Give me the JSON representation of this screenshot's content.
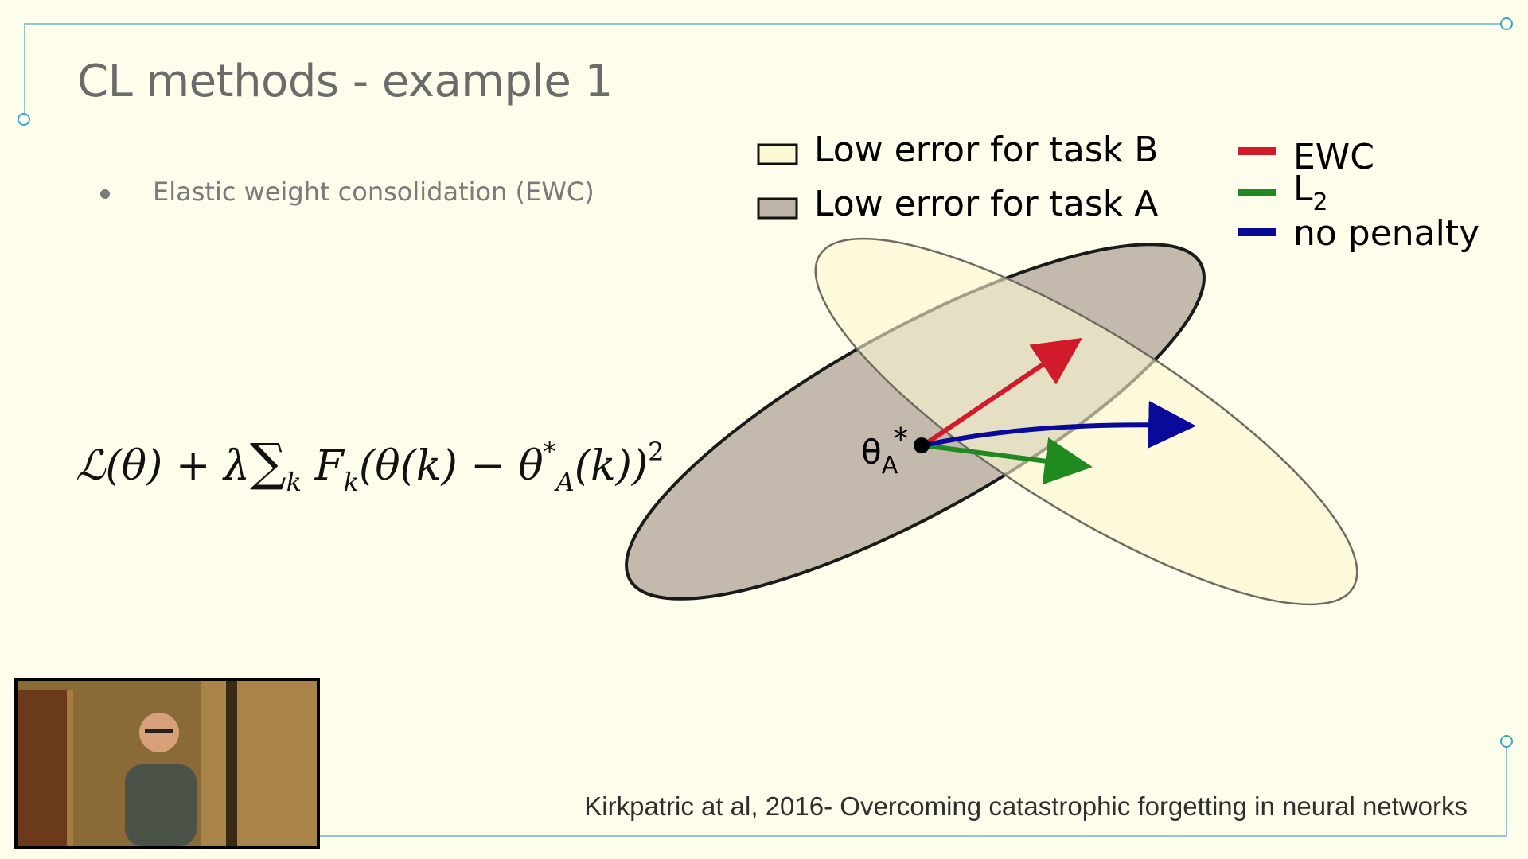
{
  "slide": {
    "title": "CL methods - example 1",
    "bullets": [
      "Elastic weight consolidation (EWC)"
    ],
    "formula": {
      "loss": "ℒ(θ)",
      "plus": "+",
      "lambda": "λ",
      "sum": "∑",
      "sum_sub": "k",
      "F": "F",
      "F_sub": "k",
      "inner": "(θ(k) − θ",
      "theta_sup": "*",
      "theta_sub": "A",
      "tail": "(k))",
      "power": "2"
    },
    "citation": "Kirkpatric at al, 2016- Overcoming catastrophic forgetting in neural networks"
  },
  "diagram": {
    "legend_regions": [
      {
        "label": "Low error for task B",
        "color": "#fbf8d2"
      },
      {
        "label": "Low error for task A",
        "color": "#bdb3a6"
      }
    ],
    "legend_methods": [
      {
        "label": "EWC",
        "color": "#d11a2a"
      },
      {
        "label": "L",
        "sub": "2",
        "color": "#1f8a1f"
      },
      {
        "label": "no penalty",
        "color": "#0a0a9a"
      }
    ],
    "point_label": "θ",
    "point_sup": "*",
    "point_sub": "A"
  },
  "video": {
    "description_icon": "presenter-video"
  },
  "colors": {
    "background": "#fefdeb",
    "frame": "#8fc7d6",
    "handle": "#3aa6c8"
  }
}
